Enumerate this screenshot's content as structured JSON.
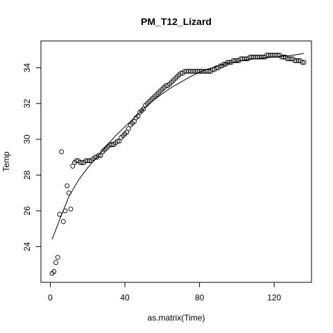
{
  "chart_data": {
    "type": "scatter",
    "title": "PM_T12_Lizard",
    "xlabel": "as.matrix(Time)",
    "ylabel": "Temp",
    "xlim": [
      -5,
      140
    ],
    "ylim": [
      22,
      35.5
    ],
    "xticks": [
      0,
      40,
      80,
      120
    ],
    "yticks": [
      24,
      26,
      28,
      30,
      32,
      34
    ],
    "grid": false,
    "legend": "none",
    "point_style": "open-circle",
    "fit_line": {
      "x": [
        1,
        5,
        10,
        15,
        20,
        25,
        30,
        35,
        40,
        45,
        50,
        55,
        60,
        65,
        70,
        75,
        80,
        85,
        90,
        95,
        100,
        105,
        110,
        115,
        120,
        125,
        130,
        136
      ],
      "y": [
        24.4,
        25.5,
        26.8,
        27.7,
        28.4,
        29.0,
        29.6,
        30.2,
        30.7,
        31.2,
        31.7,
        32.15,
        32.55,
        32.9,
        33.2,
        33.5,
        33.75,
        33.95,
        34.1,
        34.25,
        34.35,
        34.45,
        34.5,
        34.55,
        34.6,
        34.65,
        34.7,
        34.8
      ]
    },
    "series": [
      {
        "x": [
          1,
          2,
          3,
          4,
          5,
          6,
          7,
          8,
          9,
          10,
          11,
          12,
          13,
          14,
          15,
          16,
          17,
          18,
          19,
          20,
          21,
          22,
          23,
          24,
          25,
          26,
          27,
          28,
          29,
          30,
          31,
          32,
          33,
          34,
          35,
          36,
          37,
          38,
          39,
          40,
          41,
          42,
          43,
          44,
          45,
          46,
          47,
          48,
          49,
          50,
          51,
          52,
          53,
          54,
          55,
          56,
          57,
          58,
          59,
          60,
          61,
          62,
          63,
          64,
          65,
          66,
          67,
          68,
          69,
          70,
          71,
          72,
          73,
          74,
          75,
          76,
          77,
          78,
          79,
          80,
          81,
          82,
          83,
          84,
          85,
          86,
          87,
          88,
          89,
          90,
          91,
          92,
          93,
          94,
          95,
          96,
          97,
          98,
          99,
          100,
          101,
          102,
          103,
          104,
          105,
          106,
          107,
          108,
          109,
          110,
          111,
          112,
          113,
          114,
          115,
          116,
          117,
          118,
          119,
          120,
          121,
          122,
          123,
          124,
          125,
          126,
          127,
          128,
          129,
          130,
          131,
          132,
          133,
          134,
          135,
          136
        ],
        "y": [
          22.5,
          22.6,
          23.1,
          23.4,
          25.8,
          29.3,
          25.4,
          26.0,
          27.4,
          27.0,
          26.1,
          28.5,
          28.7,
          28.8,
          28.8,
          28.7,
          28.7,
          28.7,
          28.8,
          28.8,
          28.8,
          28.8,
          28.9,
          29.0,
          29.0,
          29.1,
          29.1,
          29.3,
          29.4,
          29.5,
          29.6,
          29.7,
          29.7,
          29.7,
          29.8,
          29.9,
          29.9,
          30.1,
          30.2,
          30.3,
          30.4,
          30.6,
          30.8,
          30.9,
          31.0,
          31.2,
          31.3,
          31.5,
          31.6,
          31.7,
          31.9,
          32.0,
          32.1,
          32.2,
          32.3,
          32.4,
          32.5,
          32.6,
          32.7,
          32.8,
          32.9,
          33.0,
          33.0,
          33.1,
          33.2,
          33.3,
          33.4,
          33.5,
          33.6,
          33.7,
          33.7,
          33.8,
          33.8,
          33.8,
          33.8,
          33.8,
          33.8,
          33.8,
          33.8,
          33.8,
          33.8,
          33.8,
          33.8,
          33.8,
          33.8,
          33.8,
          33.9,
          33.9,
          34.0,
          34.0,
          34.1,
          34.1,
          34.2,
          34.2,
          34.3,
          34.3,
          34.3,
          34.4,
          34.4,
          34.4,
          34.4,
          34.5,
          34.5,
          34.5,
          34.5,
          34.5,
          34.6,
          34.6,
          34.6,
          34.6,
          34.6,
          34.6,
          34.6,
          34.6,
          34.6,
          34.7,
          34.7,
          34.7,
          34.7,
          34.7,
          34.7,
          34.7,
          34.7,
          34.6,
          34.6,
          34.6,
          34.5,
          34.5,
          34.5,
          34.5,
          34.4,
          34.4,
          34.4,
          34.4,
          34.3,
          34.3
        ]
      }
    ]
  }
}
